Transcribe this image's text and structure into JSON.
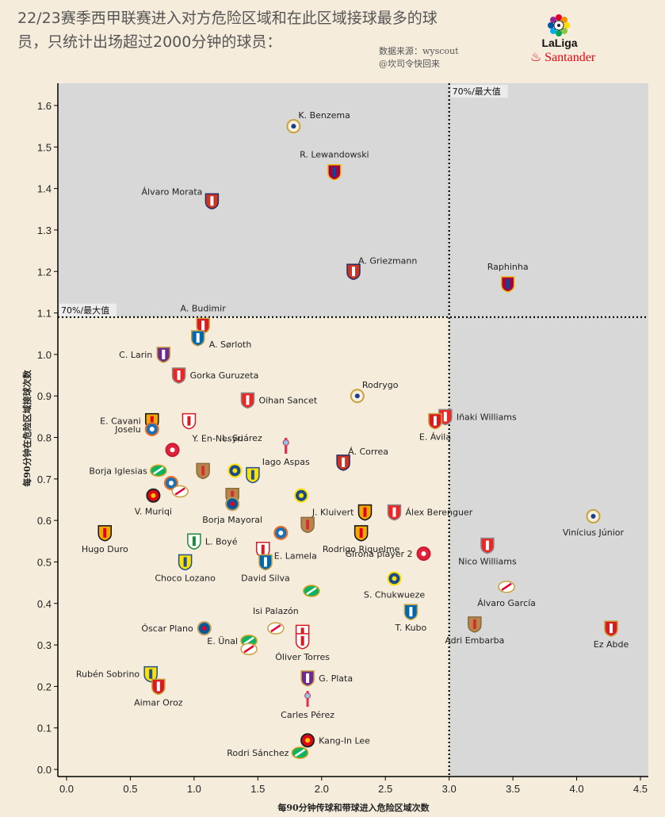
{
  "header": {
    "title_line1": "22/23赛季西甲联赛进入对方危险区域和在此区域接球最多的球",
    "title_line2": "员，只统计出场超过2000分钟的球员：",
    "source_line1": "数据来源：wyscout",
    "source_line2": "@坎司令快回来",
    "logo_brand": "LaLiga",
    "logo_sponsor": "Santander"
  },
  "colors": {
    "background": "#f5ecdc",
    "highlight_region": "#d8d8d8",
    "sponsor_red": "#e30613"
  },
  "chart_data": {
    "type": "scatter",
    "title": "22/23赛季西甲联赛进入对方危险区域和在此区域接球最多的球员，只统计出场超过2000分钟的球员：",
    "xlabel": "每90分钟传球和带球进入危险区域次数",
    "ylabel": "每90分钟在危险区域接球次数",
    "xlim": [
      -0.05,
      4.55
    ],
    "ylim": [
      -0.02,
      1.65
    ],
    "xticks": [
      "0.0",
      "0.5",
      "1.0",
      "1.5",
      "2.0",
      "2.5",
      "3.0",
      "3.5",
      "4.0",
      "4.5"
    ],
    "yticks": [
      "0.0",
      "0.1",
      "0.2",
      "0.3",
      "0.4",
      "0.5",
      "0.6",
      "0.7",
      "0.8",
      "0.9",
      "1.0",
      "1.1",
      "1.2",
      "1.3",
      "1.4",
      "1.5",
      "1.6"
    ],
    "grid": false,
    "thresholds": {
      "x": 3.0,
      "y": 1.09,
      "x_label": "70%/最大值",
      "y_label": "70%/最大值"
    },
    "points": [
      {
        "name": "K. Benzema",
        "team": "Real Madrid",
        "x": 1.78,
        "y": 1.55,
        "label_pos": "right-up"
      },
      {
        "name": "R. Lewandowski",
        "team": "Barcelona",
        "x": 2.1,
        "y": 1.44,
        "label_pos": "above"
      },
      {
        "name": "Álvaro Morata",
        "team": "Atlético Madrid",
        "x": 1.14,
        "y": 1.37,
        "label_pos": "left-up"
      },
      {
        "name": "A. Griezmann",
        "team": "Atlético Madrid",
        "x": 2.25,
        "y": 1.2,
        "label_pos": "right-up"
      },
      {
        "name": "Raphinha",
        "team": "Barcelona",
        "x": 3.46,
        "y": 1.17,
        "label_pos": "above"
      },
      {
        "name": "A. Budimir",
        "team": "Osasuna",
        "x": 1.07,
        "y": 1.07,
        "label_pos": "above"
      },
      {
        "name": "A. Sørloth",
        "team": "Real Sociedad",
        "x": 1.03,
        "y": 1.04,
        "label_pos": "right-down"
      },
      {
        "name": "C. Larin",
        "team": "Real Valladolid",
        "x": 0.76,
        "y": 1.0,
        "label_pos": "left"
      },
      {
        "name": "Gorka Guruzeta",
        "team": "Athletic Club",
        "x": 0.88,
        "y": 0.95,
        "label_pos": "right"
      },
      {
        "name": "Oihan Sancet",
        "team": "Athletic Club",
        "x": 1.42,
        "y": 0.89,
        "label_pos": "right"
      },
      {
        "name": "Rodrygo",
        "team": "Real Madrid",
        "x": 2.28,
        "y": 0.9,
        "label_pos": "right-up"
      },
      {
        "name": "Iñaki Williams",
        "team": "Athletic Club",
        "x": 2.97,
        "y": 0.85,
        "label_pos": "right"
      },
      {
        "name": "E. Ávila",
        "team": "Osasuna",
        "x": 2.89,
        "y": 0.84,
        "label_pos": "below"
      },
      {
        "name": "E. Cavani",
        "team": "Valencia",
        "x": 0.67,
        "y": 0.84,
        "label_pos": "left"
      },
      {
        "name": "Y. En-Nesyri",
        "team": "Sevilla",
        "x": 0.96,
        "y": 0.84,
        "label_pos": "below-right"
      },
      {
        "name": "Joselu",
        "team": "Espanyol",
        "x": 0.67,
        "y": 0.82,
        "label_pos": "left"
      },
      {
        "name": "Girona player",
        "team": "Girona",
        "x": 0.83,
        "y": 0.77,
        "label_pos": "none"
      },
      {
        "name": "L. Suárez",
        "team": "Celta Vigo",
        "x": 1.72,
        "y": 0.78,
        "label_pos": "left-down"
      },
      {
        "name": "Iago Aspas",
        "team": "Celta Vigo",
        "x": 1.72,
        "y": 0.78,
        "label_pos": "below"
      },
      {
        "name": "Á. Correa",
        "team": "Atlético Madrid",
        "x": 2.17,
        "y": 0.74,
        "label_pos": "right-up"
      },
      {
        "name": "Almería player 1",
        "team": "Almería",
        "x": 1.07,
        "y": 0.72,
        "label_pos": "none"
      },
      {
        "name": "Villarreal player 1",
        "team": "Villarreal",
        "x": 1.32,
        "y": 0.72,
        "label_pos": "none"
      },
      {
        "name": "Cádiz player 1",
        "team": "Cádiz",
        "x": 1.46,
        "y": 0.71,
        "label_pos": "none"
      },
      {
        "name": "Borja Iglesias",
        "team": "Real Betis",
        "x": 0.72,
        "y": 0.72,
        "label_pos": "left"
      },
      {
        "name": "Espanyol player 1",
        "team": "Espanyol",
        "x": 0.82,
        "y": 0.69,
        "label_pos": "none"
      },
      {
        "name": "Rayo player 1",
        "team": "Rayo Vallecano",
        "x": 0.89,
        "y": 0.67,
        "label_pos": "none"
      },
      {
        "name": "V. Muriqi",
        "team": "Mallorca",
        "x": 0.68,
        "y": 0.66,
        "label_pos": "below"
      },
      {
        "name": "Almería player 2",
        "team": "Almería",
        "x": 1.3,
        "y": 0.66,
        "label_pos": "none"
      },
      {
        "name": "Borja Mayoral",
        "team": "Getafe",
        "x": 1.3,
        "y": 0.64,
        "label_pos": "below"
      },
      {
        "name": "Villarreal player 2",
        "team": "Villarreal",
        "x": 1.84,
        "y": 0.66,
        "label_pos": "none"
      },
      {
        "name": "J. Kluivert",
        "team": "Valencia",
        "x": 2.34,
        "y": 0.62,
        "label_pos": "left"
      },
      {
        "name": "Álex Berenguer",
        "team": "Athletic Club",
        "x": 2.57,
        "y": 0.62,
        "label_pos": "right"
      },
      {
        "name": "Almería player 3",
        "team": "Almería",
        "x": 1.89,
        "y": 0.59,
        "label_pos": "none"
      },
      {
        "name": "Espanyol player 2",
        "team": "Espanyol",
        "x": 1.68,
        "y": 0.57,
        "label_pos": "none"
      },
      {
        "name": "Hugo Duro",
        "team": "Valencia",
        "x": 0.3,
        "y": 0.57,
        "label_pos": "below"
      },
      {
        "name": "Rodrigo Riquelme",
        "team": "Valencia",
        "x": 2.31,
        "y": 0.57,
        "label_pos": "below"
      },
      {
        "name": "Girona player 2",
        "team": "Girona",
        "x": 2.8,
        "y": 0.52,
        "label_pos": "left"
      },
      {
        "name": "L. Boyé",
        "team": "Elche",
        "x": 1.0,
        "y": 0.55,
        "label_pos": "right"
      },
      {
        "name": "E. Lamela",
        "team": "Sevilla",
        "x": 1.54,
        "y": 0.53,
        "label_pos": "right-down"
      },
      {
        "name": "Choco Lozano",
        "team": "Cádiz",
        "x": 0.93,
        "y": 0.5,
        "label_pos": "below"
      },
      {
        "name": "David Silva",
        "team": "Real Sociedad",
        "x": 1.56,
        "y": 0.5,
        "label_pos": "below"
      },
      {
        "name": "Nico Williams",
        "team": "Athletic Club",
        "x": 3.3,
        "y": 0.54,
        "label_pos": "below"
      },
      {
        "name": "Vinícius Júnior",
        "team": "Real Madrid",
        "x": 4.13,
        "y": 0.61,
        "label_pos": "below"
      },
      {
        "name": "S. Chukwueze",
        "team": "Villarreal",
        "x": 2.57,
        "y": 0.46,
        "label_pos": "below"
      },
      {
        "name": "Betis player 1",
        "team": "Real Betis",
        "x": 1.92,
        "y": 0.43,
        "label_pos": "none"
      },
      {
        "name": "Álvaro García",
        "team": "Rayo Vallecano",
        "x": 3.45,
        "y": 0.44,
        "label_pos": "below"
      },
      {
        "name": "T. Kubo",
        "team": "Real Sociedad",
        "x": 2.7,
        "y": 0.38,
        "label_pos": "below"
      },
      {
        "name": "Isi Palazón",
        "team": "Rayo Vallecano",
        "x": 1.64,
        "y": 0.34,
        "label_pos": "above"
      },
      {
        "name": "Óscar Plano",
        "team": "Getafe",
        "x": 1.08,
        "y": 0.34,
        "label_pos": "left"
      },
      {
        "name": "Sevilla player",
        "team": "Sevilla",
        "x": 1.85,
        "y": 0.33,
        "label_pos": "none"
      },
      {
        "name": "Adri Embarba",
        "team": "Almería",
        "x": 3.2,
        "y": 0.35,
        "label_pos": "below"
      },
      {
        "name": "Ez Abde",
        "team": "Osasuna",
        "x": 4.27,
        "y": 0.34,
        "label_pos": "below"
      },
      {
        "name": "E. Ünal",
        "team": "Real Betis",
        "x": 1.43,
        "y": 0.31,
        "label_pos": "left"
      },
      {
        "name": "Rayo player 2",
        "team": "Rayo Vallecano",
        "x": 1.43,
        "y": 0.29,
        "label_pos": "none"
      },
      {
        "name": "Óliver Torres",
        "team": "Sevilla",
        "x": 1.85,
        "y": 0.31,
        "label_pos": "below"
      },
      {
        "name": "Rubén Sobrino",
        "team": "Cádiz",
        "x": 0.66,
        "y": 0.23,
        "label_pos": "left"
      },
      {
        "name": "Aimar Oroz",
        "team": "Osasuna",
        "x": 0.72,
        "y": 0.2,
        "label_pos": "below"
      },
      {
        "name": "G. Plata",
        "team": "Real Valladolid",
        "x": 1.89,
        "y": 0.22,
        "label_pos": "right"
      },
      {
        "name": "Carles Pérez",
        "team": "Celta Vigo",
        "x": 1.89,
        "y": 0.17,
        "label_pos": "below"
      },
      {
        "name": "Kang-In Lee",
        "team": "Mallorca",
        "x": 1.89,
        "y": 0.07,
        "label_pos": "right"
      },
      {
        "name": "Rodri Sánchez",
        "team": "Real Betis",
        "x": 1.83,
        "y": 0.04,
        "label_pos": "left"
      }
    ]
  }
}
